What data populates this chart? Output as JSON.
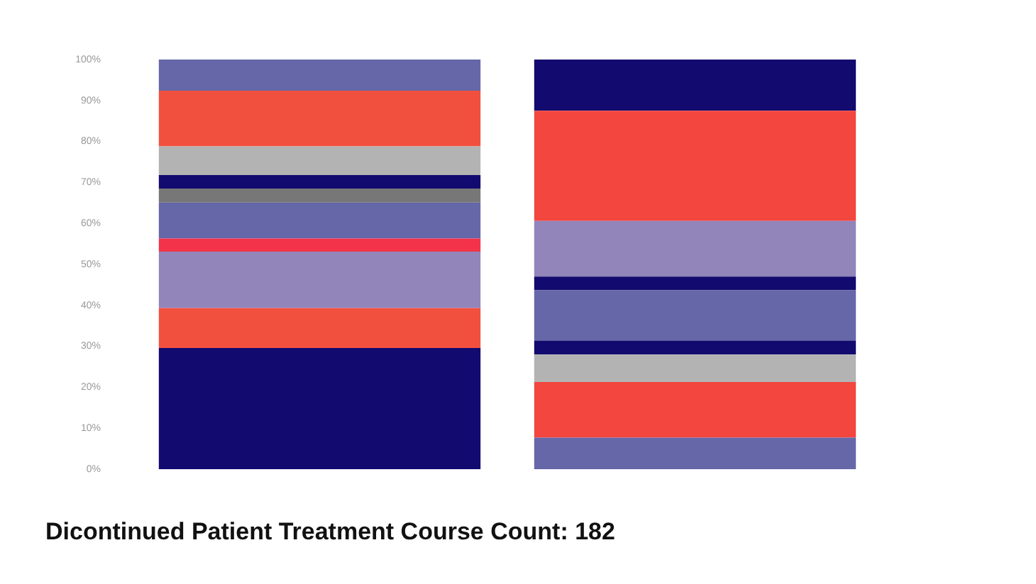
{
  "chart_data": {
    "type": "bar",
    "stacked": true,
    "title": "Dicontinued Patient Treatment Course Count: 182",
    "categories": [
      null,
      null
    ],
    "ylim": [
      0,
      100
    ],
    "yticks": [
      {
        "value": 0,
        "label": "0%"
      },
      {
        "value": 10,
        "label": "10%"
      },
      {
        "value": 20,
        "label": "20%"
      },
      {
        "value": 30,
        "label": "30%"
      },
      {
        "value": 40,
        "label": "40%"
      },
      {
        "value": 50,
        "label": "50%"
      },
      {
        "value": 60,
        "label": "60%"
      },
      {
        "value": 70,
        "label": "70%"
      },
      {
        "value": 80,
        "label": "80%"
      },
      {
        "value": 90,
        "label": "90%"
      },
      {
        "value": 100,
        "label": "100%"
      }
    ],
    "tick_labels": "y",
    "grid": false,
    "legend": false,
    "series": [
      {
        "color": "#120a6e",
        "values": [
          29.6,
          null
        ]
      },
      {
        "color": "#f2503e",
        "values": [
          9.7,
          null
        ]
      },
      {
        "color": "#9185ba",
        "values": [
          13.8,
          null
        ]
      },
      {
        "color": "#f2334a",
        "values": [
          3.2,
          null
        ]
      },
      {
        "color": "#6567a8",
        "values": [
          8.8,
          null
        ]
      },
      {
        "color": "#777777",
        "values": [
          3.4,
          null
        ]
      },
      {
        "color": "#120a6e",
        "values": [
          3.3,
          null
        ]
      },
      {
        "color": "#b3b3b3",
        "values": [
          7.0,
          null
        ]
      },
      {
        "color": "#f2503e",
        "values": [
          13.6,
          null
        ]
      },
      {
        "color": "#6567a8",
        "values": [
          7.6,
          null
        ]
      },
      {
        "color": "#6567a8",
        "values": [
          null,
          7.7
        ]
      },
      {
        "color": "#f2463f",
        "values": [
          null,
          13.6
        ]
      },
      {
        "color": "#b3b3b3",
        "values": [
          null,
          6.7
        ]
      },
      {
        "color": "#120a6e",
        "values": [
          null,
          3.4
        ]
      },
      {
        "color": "#6567a8",
        "values": [
          null,
          12.3
        ]
      },
      {
        "color": "#120a6e",
        "values": [
          null,
          3.3
        ]
      },
      {
        "color": "#9185ba",
        "values": [
          null,
          13.6
        ]
      },
      {
        "color": "#f2463f",
        "values": [
          null,
          26.9
        ]
      },
      {
        "color": "#120a6e",
        "values": [
          null,
          12.5
        ]
      }
    ]
  }
}
